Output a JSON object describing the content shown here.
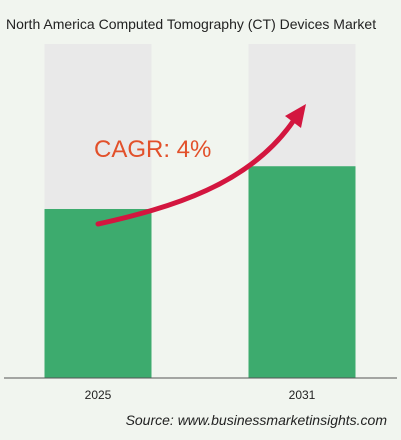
{
  "chart_data": {
    "type": "bar",
    "title": "North America Computed Tomography (CT) Devices Market",
    "categories": [
      "2025",
      "2031"
    ],
    "values": [
      0.506,
      0.634
    ],
    "ylim": [
      0,
      1
    ],
    "xlabel": "",
    "ylabel": "",
    "grid": false,
    "annotation": "CAGR: 4%",
    "source": "Source: www.businessmarketinsights.com",
    "colors": {
      "bar_fill": "#3dab6e",
      "bar_track": "#e9e9e9",
      "arrow": "#d3163f",
      "annotation": "#e2502a",
      "background": "#f1f5ef"
    }
  }
}
